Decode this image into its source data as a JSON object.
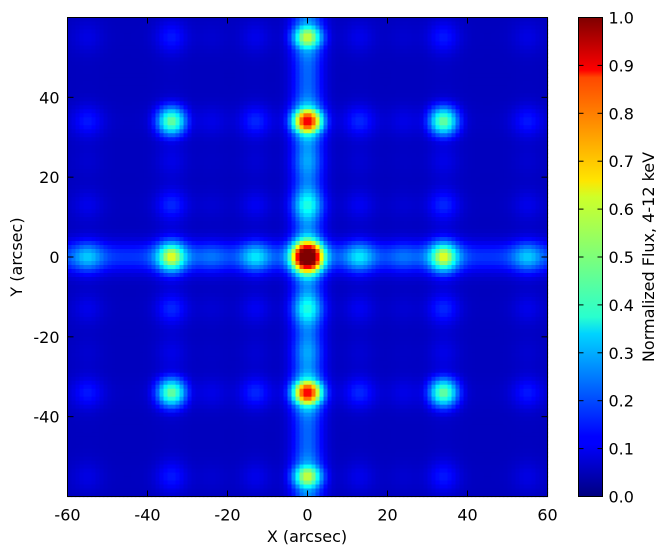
{
  "chart_data": {
    "type": "heatmap",
    "title": "",
    "xlabel": "X (arcsec)",
    "ylabel": "Y (arcsec)",
    "xlim": [
      -60,
      60
    ],
    "ylim": [
      -60,
      60
    ],
    "xticks": [
      -60,
      -40,
      -20,
      0,
      20,
      40,
      60
    ],
    "yticks": [
      -40,
      -20,
      0,
      20,
      40
    ],
    "colormap": "jet",
    "colorbar": {
      "label": "Normalized Flux, 4-12 keV",
      "range": [
        0.0,
        1.0
      ],
      "ticks": [
        "0.0",
        "0.1",
        "0.2",
        "0.3",
        "0.4",
        "0.5",
        "0.6",
        "0.7",
        "0.8",
        "0.9",
        "1.0"
      ]
    },
    "grid": false,
    "peak_positions_arcsec": [
      -55,
      -34,
      -24,
      -13,
      0,
      13,
      24,
      34,
      55
    ],
    "axis_strength": {
      "-55": 0.22,
      "-34": 0.5,
      "-24": 0.1,
      "-13": 0.26,
      "0": 0.96,
      "13": 0.26,
      "24": 0.1,
      "34": 0.5,
      "55": 0.22
    },
    "hotspots": [
      {
        "x": 0,
        "y": 0,
        "value": 0.92
      },
      {
        "x": 0,
        "y": 34,
        "value": 0.85
      },
      {
        "x": 0,
        "y": -34,
        "value": 0.84
      },
      {
        "x": 0,
        "y": 55,
        "value": 0.52
      },
      {
        "x": 0,
        "y": -55,
        "value": 0.52
      },
      {
        "x": -34,
        "y": 0,
        "value": 0.55
      },
      {
        "x": 34,
        "y": 0,
        "value": 0.55
      },
      {
        "x": -34,
        "y": 34,
        "value": 0.42
      },
      {
        "x": 34,
        "y": 34,
        "value": 0.42
      },
      {
        "x": -34,
        "y": -34,
        "value": 0.42
      },
      {
        "x": 34,
        "y": -34,
        "value": 0.42
      }
    ]
  }
}
